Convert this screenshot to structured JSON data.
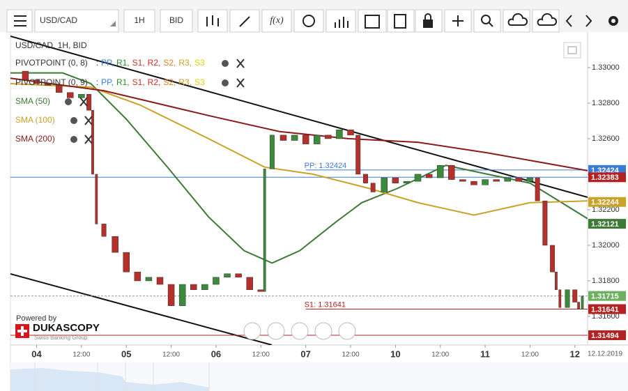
{
  "toolbar": {
    "symbol": "USD/CAD",
    "period": "1H",
    "side": "BID"
  },
  "branding": {
    "powered_by": "Powered by",
    "name": "DUKASCOPY",
    "tagline": "Swiss Banking Group"
  },
  "chart_data": {
    "type": "candlestick",
    "title": "USD/CAD, 1H, BID",
    "date": "12.12.2019",
    "x": [
      -6,
      -3,
      0,
      3,
      6,
      9,
      12,
      14,
      15,
      16,
      18,
      21,
      24,
      27,
      30,
      33,
      36,
      39,
      42,
      45,
      48,
      51,
      54,
      57,
      60,
      61,
      63,
      66,
      69,
      72,
      75,
      78,
      81,
      84,
      86,
      88,
      90,
      93,
      96,
      99,
      102,
      105,
      108,
      111,
      114,
      117,
      120,
      123,
      126,
      129,
      132,
      134,
      136,
      138,
      139,
      140,
      142,
      144,
      145,
      146
    ],
    "values": [
      1.3298,
      1.3293,
      1.3291,
      1.329,
      1.3286,
      1.3283,
      1.3285,
      1.3276,
      1.324,
      1.3212,
      1.3205,
      1.3196,
      1.3185,
      1.318,
      1.3182,
      1.3178,
      1.3166,
      1.3178,
      1.3175,
      1.3178,
      1.3182,
      1.3184,
      1.3182,
      1.3175,
      1.3174,
      1.3243,
      1.3262,
      1.3259,
      1.3262,
      1.3257,
      1.3262,
      1.326,
      1.3265,
      1.3262,
      1.324,
      1.3235,
      1.323,
      1.3238,
      1.3235,
      1.3236,
      1.324,
      1.3238,
      1.3245,
      1.3237,
      1.3236,
      1.3234,
      1.3237,
      1.3236,
      1.3238,
      1.3236,
      1.3238,
      1.3225,
      1.32,
      1.3185,
      1.3175,
      1.3165,
      1.3175,
      1.3168,
      1.3164,
      1.31715
    ],
    "up_color": "#3c8a3c",
    "down_color": "#b5302a",
    "series": [
      {
        "name": "SMA (50)",
        "color": "#3d7a35",
        "x": [
          -7,
          7,
          14.5,
          24,
          35,
          46,
          55.5,
          63,
          70.4,
          80,
          87,
          96.5,
          109.5,
          120.7,
          132,
          147.4
        ],
        "values": [
          1.3297,
          1.3297,
          1.3291,
          1.3271,
          1.3244,
          1.3216,
          1.3197,
          1.319,
          1.3197,
          1.3213,
          1.3224,
          1.3232,
          1.3245,
          1.324,
          1.3235,
          1.3215
        ]
      },
      {
        "name": "SMA (100)",
        "color": "#c9a227",
        "x": [
          -7,
          14.5,
          27.6,
          46,
          61,
          74,
          89,
          102,
          117,
          132,
          147.4
        ],
        "values": [
          1.3291,
          1.3289,
          1.3279,
          1.326,
          1.3244,
          1.324,
          1.3232,
          1.3224,
          1.3217,
          1.3224,
          1.3225
        ]
      },
      {
        "name": "SMA (200)",
        "color": "#8b1a1a",
        "x": [
          -7,
          18,
          46,
          65,
          83.5,
          102,
          120.7,
          147.4
        ],
        "values": [
          1.3294,
          1.3287,
          1.3273,
          1.3264,
          1.326,
          1.3258,
          1.3252,
          1.3242
        ]
      }
    ],
    "pivots": [
      {
        "name": "PIVOTPOINT (0, 8)"
      },
      {
        "name": "PIVOTPOINT (0, 9)"
      }
    ],
    "pivot_tokens": [
      ":",
      "PP,",
      "R1,",
      "S1,",
      "R2,",
      "S2,",
      "R3,",
      "S3"
    ],
    "pivot_token_colors": [
      "#333333",
      "#3a7bd5",
      "#2e8b2e",
      "#c0392b",
      "#d62728",
      "#e67e22",
      "#c9a227",
      "#e6d200"
    ],
    "levels": [
      {
        "label": "PP: 1.32424",
        "value": 1.32424,
        "color": "#3a7bd5",
        "start": 72
      },
      {
        "label": "S1: 1.31641",
        "value": 1.31641,
        "color": "#b22222",
        "start": 72
      }
    ],
    "lines": [
      {
        "value": 1.32383,
        "color": "#3a7bd5"
      },
      {
        "value": 1.31494,
        "color": "#b22222"
      },
      {
        "value": 1.31715,
        "color": "#999999",
        "dashed": true
      }
    ],
    "price_labels": [
      {
        "value": 1.32424,
        "color": "#3a7bd5"
      },
      {
        "value": 1.32383,
        "color": "#b22222"
      },
      {
        "value": 1.32244,
        "color": "#c9a227"
      },
      {
        "value": 1.32121,
        "color": "#3d7a35"
      },
      {
        "value": 1.31715,
        "color": "#6cb25e"
      },
      {
        "value": 1.31641,
        "color": "#b22222"
      },
      {
        "value": 1.31494,
        "color": "#b22222"
      }
    ],
    "xlim": [
      -7,
      147.4
    ],
    "ylim": [
      1.31439,
      1.332
    ],
    "xticks": [
      {
        "value": 0,
        "label": "04"
      },
      {
        "value": 12,
        "label": "12:00"
      },
      {
        "value": 24,
        "label": "05"
      },
      {
        "value": 36,
        "label": "12:00"
      },
      {
        "value": 48,
        "label": "06"
      },
      {
        "value": 60,
        "label": "12:00"
      },
      {
        "value": 72,
        "label": "07"
      },
      {
        "value": 84,
        "label": "12:00"
      },
      {
        "value": 96,
        "label": "10"
      },
      {
        "value": 108,
        "label": "12:00"
      },
      {
        "value": 120,
        "label": "11"
      },
      {
        "value": 132,
        "label": "12:00"
      },
      {
        "value": 144,
        "label": "12"
      }
    ],
    "yticks": [
      {
        "value": 1.33,
        "label": "1.33000"
      },
      {
        "value": 1.328,
        "label": "1.32800"
      },
      {
        "value": 1.326,
        "label": "1.32600"
      },
      {
        "value": 1.324,
        "label": "1.32400"
      },
      {
        "value": 1.322,
        "label": "1.32200"
      },
      {
        "value": 1.32,
        "label": "1.32000"
      },
      {
        "value": 1.318,
        "label": "1.31800"
      },
      {
        "value": 1.316,
        "label": "1.31600"
      }
    ],
    "grid": false
  }
}
